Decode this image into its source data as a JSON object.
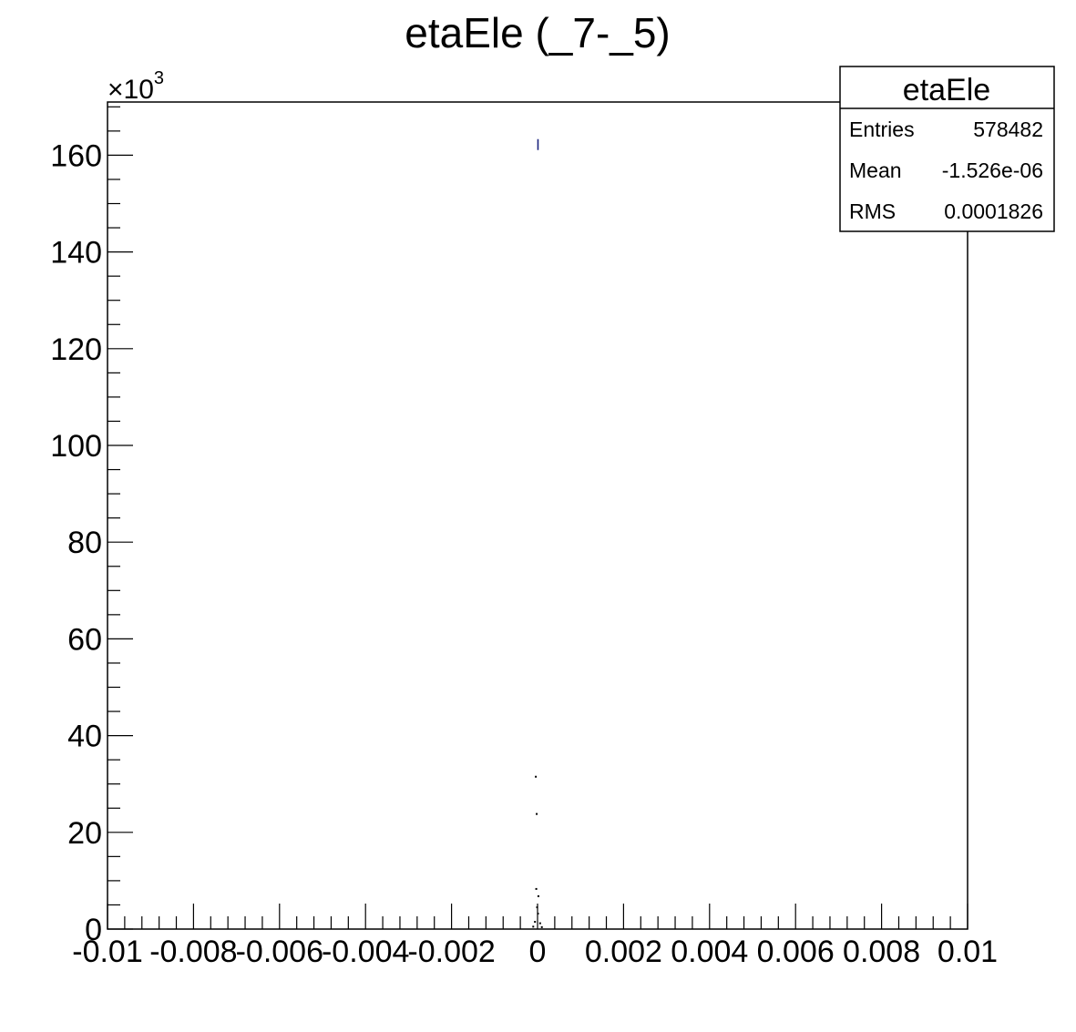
{
  "chart_data": {
    "type": "scatter",
    "title": "etaEle (_7-_5)",
    "xlabel": "",
    "ylabel": "",
    "xlim": [
      -0.01,
      0.01
    ],
    "ylim": [
      0,
      171000
    ],
    "y_multiplier_label": "×10",
    "y_multiplier_exponent": "3",
    "x_ticks": [
      -0.01,
      -0.008,
      -0.006,
      -0.004,
      -0.002,
      0,
      0.002,
      0.004,
      0.006,
      0.008,
      0.01
    ],
    "x_tick_labels": [
      "-0.01",
      "-0.008",
      "-0.006",
      "-0.004",
      "-0.002",
      "0",
      "0.002",
      "0.004",
      "0.006",
      "0.008",
      "0.01"
    ],
    "y_ticks": [
      0,
      20000,
      40000,
      60000,
      80000,
      100000,
      120000,
      140000,
      160000
    ],
    "y_tick_labels": [
      "0",
      "20",
      "40",
      "60",
      "80",
      "100",
      "120",
      "140",
      "160"
    ],
    "points": [
      {
        "x": -4e-05,
        "y": 31500
      },
      {
        "x": -2e-05,
        "y": 23800
      },
      {
        "x": -3e-05,
        "y": 8300
      },
      {
        "x": 2e-05,
        "y": 6800
      },
      {
        "x": -1e-05,
        "y": 4500
      },
      {
        "x": 1e-05,
        "y": 3200
      },
      {
        "x": -6e-05,
        "y": 1500
      },
      {
        "x": 6e-05,
        "y": 1200
      },
      {
        "x": -0.0001,
        "y": 500
      },
      {
        "x": 0.0001,
        "y": 400
      },
      {
        "x": 1e-05,
        "y": 162200
      }
    ],
    "colors": {
      "peak_marker": "#1a237e",
      "marker": "#000000"
    },
    "grid": false,
    "stats_box": {
      "title": "etaEle",
      "placement": "top-right",
      "rows": [
        {
          "label": "Entries",
          "value": "578482"
        },
        {
          "label": "Mean",
          "value": "-1.526e-06"
        },
        {
          "label": "RMS",
          "value": "0.0001826"
        }
      ]
    }
  }
}
